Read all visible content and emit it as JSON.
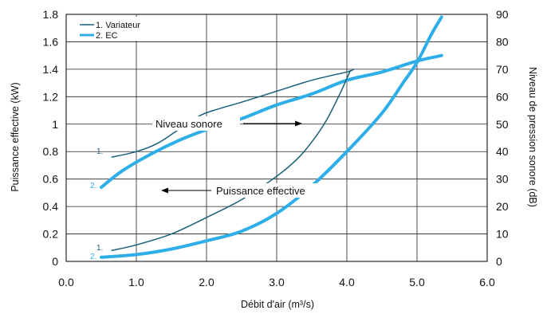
{
  "chart_data": {
    "type": "line",
    "title": "",
    "xlabel": "Débit d'air  (m³/s)",
    "ylabel_left": "Puissance effective (kW)",
    "ylabel_right": "Niveau de pression sonore (dB)",
    "xlim": [
      0,
      6
    ],
    "ylim_left": [
      0,
      1.8
    ],
    "ylim_right": [
      0,
      90
    ],
    "x_ticks": [
      "0.0",
      "1.0",
      "2.0",
      "3.0",
      "4.0",
      "5.0",
      "6.0"
    ],
    "y_left_ticks": [
      "0",
      "0.2",
      "0.4",
      "0.6",
      "0.8",
      "1",
      "1.2",
      "1.4",
      "1.6",
      "1.8"
    ],
    "y_right_ticks": [
      "0",
      "10",
      "20",
      "30",
      "40",
      "50",
      "60",
      "70",
      "80",
      "90"
    ],
    "grid": true,
    "legend_position": "top-left",
    "legend": [
      {
        "label": "1. Variateur",
        "color": "#1a5f7a"
      },
      {
        "label": "2. EC",
        "color": "#2eaee8"
      }
    ],
    "annotations": [
      {
        "text": "Niveau sonore",
        "arrow": "right"
      },
      {
        "text": "Puissance effective",
        "arrow": "left"
      }
    ],
    "curve_labels": [
      {
        "text": "1.",
        "series": "variateur_sound"
      },
      {
        "text": "2.",
        "series": "ec_sound"
      },
      {
        "text": "1.",
        "series": "variateur_power"
      },
      {
        "text": "2.",
        "series": "ec_power"
      }
    ],
    "series": [
      {
        "key": "variateur_sound",
        "legend": "1. Variateur",
        "axis": "right",
        "color": "#1a5f7a",
        "width": 1.5,
        "x": [
          0.65,
          1.0,
          1.3,
          1.6,
          1.9,
          2.1,
          2.5,
          3.0,
          3.5,
          4.0,
          4.1
        ],
        "y": [
          38,
          40,
          43,
          48,
          53,
          55,
          58,
          62,
          66,
          69,
          70
        ]
      },
      {
        "key": "ec_sound",
        "legend": "2. EC",
        "axis": "right",
        "color": "#2eaee8",
        "width": 4,
        "x": [
          0.5,
          0.8,
          1.2,
          1.6,
          2.0,
          2.5,
          3.0,
          3.5,
          4.0,
          4.5,
          5.0,
          5.35
        ],
        "y": [
          27,
          33,
          39,
          44,
          48,
          52,
          57,
          61,
          66,
          69,
          73,
          75
        ]
      },
      {
        "key": "variateur_power",
        "legend": "1. Variateur",
        "axis": "left",
        "color": "#1a5f7a",
        "width": 1.5,
        "x": [
          0.65,
          1.0,
          1.5,
          2.0,
          2.5,
          3.0,
          3.3,
          3.5,
          3.7,
          3.9,
          4.05
        ],
        "y": [
          0.08,
          0.12,
          0.2,
          0.32,
          0.45,
          0.62,
          0.75,
          0.87,
          1.02,
          1.22,
          1.39
        ]
      },
      {
        "key": "ec_power",
        "legend": "2. EC",
        "axis": "left",
        "color": "#2eaee8",
        "width": 4,
        "x": [
          0.5,
          1.0,
          1.5,
          2.0,
          2.5,
          3.0,
          3.5,
          4.0,
          4.5,
          4.8,
          5.0,
          5.2,
          5.35
        ],
        "y": [
          0.03,
          0.05,
          0.09,
          0.15,
          0.22,
          0.35,
          0.55,
          0.8,
          1.08,
          1.3,
          1.45,
          1.65,
          1.78
        ]
      }
    ]
  }
}
